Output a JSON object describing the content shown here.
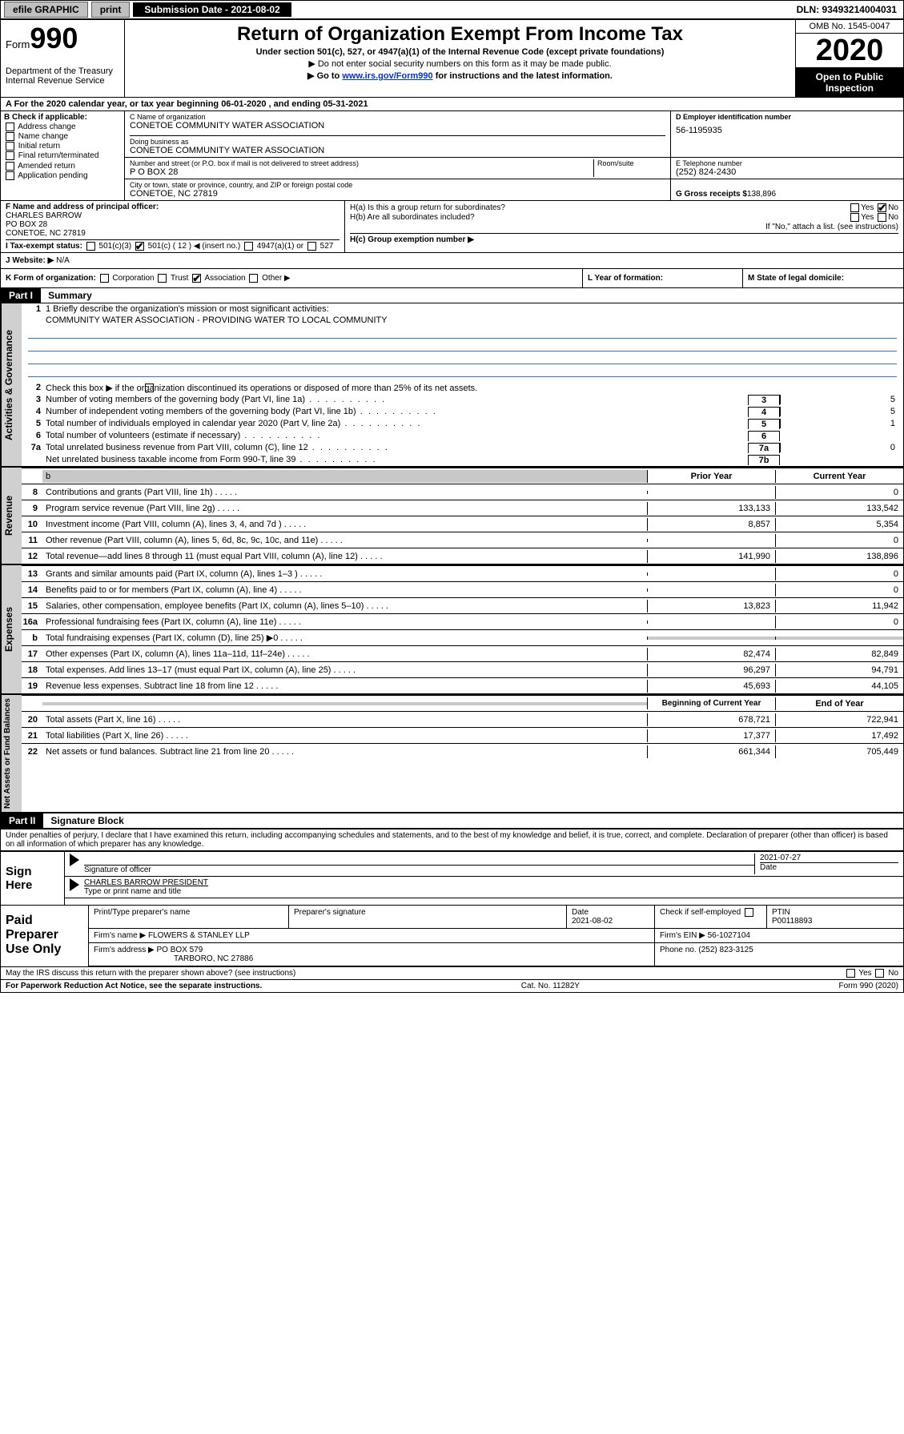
{
  "topbar": {
    "efile": "efile GRAPHIC",
    "print": "print",
    "sub_label": "Submission Date - 2021-08-02",
    "dln": "DLN: 93493214004031"
  },
  "header": {
    "form_label": "Form",
    "form_number": "990",
    "dept": "Department of the Treasury\nInternal Revenue Service",
    "title": "Return of Organization Exempt From Income Tax",
    "sub1": "Under section 501(c), 527, or 4947(a)(1) of the Internal Revenue Code (except private foundations)",
    "sub2": "▶ Do not enter social security numbers on this form as it may be made public.",
    "sub3_pre": "▶ Go to ",
    "sub3_link": "www.irs.gov/Form990",
    "sub3_post": " for instructions and the latest information.",
    "omb": "OMB No. 1545-0047",
    "year": "2020",
    "open": "Open to Public Inspection"
  },
  "lineA": "A For the 2020 calendar year, or tax year beginning 06-01-2020    , and ending 05-31-2021",
  "colB": {
    "title": "B Check if applicable:",
    "items": [
      "Address change",
      "Name change",
      "Initial return",
      "Final return/terminated",
      "Amended return",
      "Application pending"
    ]
  },
  "colC": {
    "c_label": "C Name of organization",
    "c_name": "CONETOE COMMUNITY WATER ASSOCIATION",
    "dba_label": "Doing business as",
    "dba": "CONETOE COMMUNITY WATER ASSOCIATION",
    "street_label": "Number and street (or P.O. box if mail is not delivered to street address)",
    "street": "P O BOX 28",
    "room_label": "Room/suite",
    "city_label": "City or town, state or province, country, and ZIP or foreign postal code",
    "city": "CONETOE, NC  27819"
  },
  "colD": {
    "d_label": "D Employer identification number",
    "ein": "56-1195935",
    "e_label": "E Telephone number",
    "phone": "(252) 824-2430",
    "g_label": "G Gross receipts $ ",
    "g_val": "138,896"
  },
  "fBlock": {
    "f_label": "F Name and address of principal officer:",
    "f_name": "CHARLES BARROW",
    "f_street": "PO BOX 28",
    "f_city": "CONETOE, NC  27819"
  },
  "hBlock": {
    "ha": "H(a)  Is this a group return for subordinates?",
    "ha_yn": "Yes   No",
    "hb": "H(b)  Are all subordinates included?",
    "hb_yn": "Yes   No",
    "hb_note": "If \"No,\" attach a list. (see instructions)",
    "hc": "H(c)  Group exemption number ▶"
  },
  "iLine": {
    "label": "I    Tax-exempt status:",
    "opt1": "501(c)(3)",
    "opt2": "501(c) ( 12 ) ◀ (insert no.)",
    "opt3": "4947(a)(1) or",
    "opt4": "527"
  },
  "jLine": {
    "label": "J   Website: ▶",
    "val": "N/A"
  },
  "kLine": {
    "label": "K Form of organization:",
    "o1": "Corporation",
    "o2": "Trust",
    "o3": "Association",
    "o4": "Other ▶"
  },
  "lLine": {
    "label": "L Year of formation:"
  },
  "mLine": {
    "label": "M State of legal domicile:"
  },
  "part1": {
    "hdr": "Part I",
    "title": "Summary",
    "side_gov": "Activities & Governance",
    "side_rev": "Revenue",
    "side_exp": "Expenses",
    "side_net": "Net Assets or Fund Balances",
    "q1_label": "1  Briefly describe the organization's mission or most significant activities:",
    "q1_text": "COMMUNITY WATER ASSOCIATION - PROVIDING WATER TO LOCAL COMMUNITY",
    "q2": "Check this box ▶        if the organization discontinued its operations or disposed of more than 25% of its net assets.",
    "rows_gov": [
      {
        "n": "3",
        "d": "Number of voting members of the governing body (Part VI, line 1a)",
        "box": "3",
        "v": "5"
      },
      {
        "n": "4",
        "d": "Number of independent voting members of the governing body (Part VI, line 1b)",
        "box": "4",
        "v": "5"
      },
      {
        "n": "5",
        "d": "Total number of individuals employed in calendar year 2020 (Part V, line 2a)",
        "box": "5",
        "v": "1"
      },
      {
        "n": "6",
        "d": "Total number of volunteers (estimate if necessary)",
        "box": "6",
        "v": ""
      },
      {
        "n": "7a",
        "d": "Total unrelated business revenue from Part VIII, column (C), line 12",
        "box": "7a",
        "v": "0"
      },
      {
        "n": "",
        "d": "Net unrelated business taxable income from Form 990-T, line 39",
        "box": "7b",
        "v": ""
      }
    ],
    "col_head_prior": "Prior Year",
    "col_head_curr": "Current Year",
    "rows_rev": [
      {
        "n": "8",
        "d": "Contributions and grants (Part VIII, line 1h)",
        "p": "",
        "c": "0"
      },
      {
        "n": "9",
        "d": "Program service revenue (Part VIII, line 2g)",
        "p": "133,133",
        "c": "133,542"
      },
      {
        "n": "10",
        "d": "Investment income (Part VIII, column (A), lines 3, 4, and 7d )",
        "p": "8,857",
        "c": "5,354"
      },
      {
        "n": "11",
        "d": "Other revenue (Part VIII, column (A), lines 5, 6d, 8c, 9c, 10c, and 11e)",
        "p": "",
        "c": "0"
      },
      {
        "n": "12",
        "d": "Total revenue—add lines 8 through 11 (must equal Part VIII, column (A), line 12)",
        "p": "141,990",
        "c": "138,896"
      }
    ],
    "rows_exp": [
      {
        "n": "13",
        "d": "Grants and similar amounts paid (Part IX, column (A), lines 1–3 )",
        "p": "",
        "c": "0"
      },
      {
        "n": "14",
        "d": "Benefits paid to or for members (Part IX, column (A), line 4)",
        "p": "",
        "c": "0"
      },
      {
        "n": "15",
        "d": "Salaries, other compensation, employee benefits (Part IX, column (A), lines 5–10)",
        "p": "13,823",
        "c": "11,942"
      },
      {
        "n": "16a",
        "d": "Professional fundraising fees (Part IX, column (A), line 11e)",
        "p": "",
        "c": "0"
      },
      {
        "n": "b",
        "d": "Total fundraising expenses (Part IX, column (D), line 25) ▶0",
        "p": "shade",
        "c": "shade"
      },
      {
        "n": "17",
        "d": "Other expenses (Part IX, column (A), lines 11a–11d, 11f–24e)",
        "p": "82,474",
        "c": "82,849"
      },
      {
        "n": "18",
        "d": "Total expenses. Add lines 13–17 (must equal Part IX, column (A), line 25)",
        "p": "96,297",
        "c": "94,791"
      },
      {
        "n": "19",
        "d": "Revenue less expenses. Subtract line 18 from line 12",
        "p": "45,693",
        "c": "44,105"
      }
    ],
    "col_head_beg": "Beginning of Current Year",
    "col_head_end": "End of Year",
    "rows_net": [
      {
        "n": "20",
        "d": "Total assets (Part X, line 16)",
        "p": "678,721",
        "c": "722,941"
      },
      {
        "n": "21",
        "d": "Total liabilities (Part X, line 26)",
        "p": "17,377",
        "c": "17,492"
      },
      {
        "n": "22",
        "d": "Net assets or fund balances. Subtract line 21 from line 20",
        "p": "661,344",
        "c": "705,449"
      }
    ]
  },
  "part2": {
    "hdr": "Part II",
    "title": "Signature Block",
    "perjury": "Under penalties of perjury, I declare that I have examined this return, including accompanying schedules and statements, and to the best of my knowledge and belief, it is true, correct, and complete. Declaration of preparer (other than officer) is based on all information of which preparer has any knowledge.",
    "sign_here": "Sign Here",
    "sig_officer_lbl": "Signature of officer",
    "sig_date": "2021-07-27",
    "date_lbl": "Date",
    "name_title": "CHARLES BARROW  PRESIDENT",
    "name_title_lbl": "Type or print name and title",
    "paid": "Paid Preparer Use Only",
    "prep_name_lbl": "Print/Type preparer's name",
    "prep_sig_lbl": "Preparer's signature",
    "prep_date_lbl": "Date",
    "prep_date": "2021-08-02",
    "check_self": "Check        if self-employed",
    "ptin_lbl": "PTIN",
    "ptin": "P00118893",
    "firm_name_lbl": "Firm's name     ▶",
    "firm_name": "FLOWERS & STANLEY LLP",
    "firm_ein_lbl": "Firm's EIN ▶",
    "firm_ein": "56-1027104",
    "firm_addr_lbl": "Firm's address ▶",
    "firm_addr": "PO BOX 579",
    "firm_city": "TARBORO, NC  27886",
    "phone_lbl": "Phone no.",
    "phone": "(252) 823-3125",
    "discuss": "May the IRS discuss this return with the preparer shown above? (see instructions)",
    "discuss_yn": "Yes       No",
    "paperwork": "For Paperwork Reduction Act Notice, see the separate instructions.",
    "cat": "Cat. No. 11282Y",
    "formref": "Form 990 (2020)"
  }
}
